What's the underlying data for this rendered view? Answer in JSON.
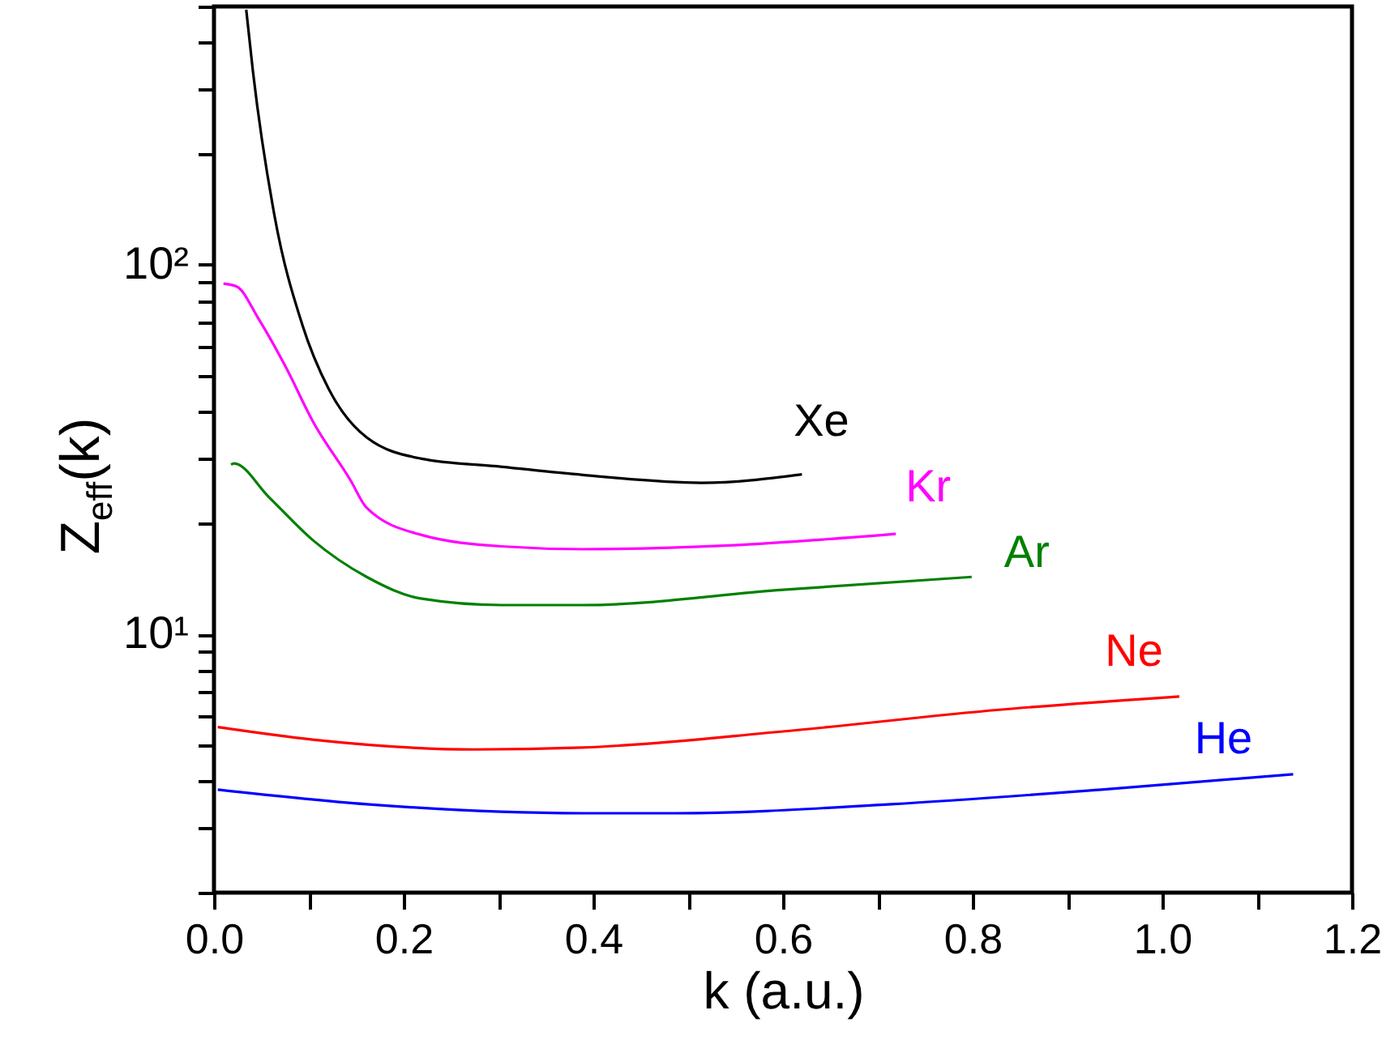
{
  "chart_data": {
    "type": "line",
    "xlabel": "k (a.u.)",
    "ylabel": "Z$_{eff}$(k)",
    "log": "y",
    "grid": false,
    "legend": false,
    "xlim": [
      0,
      1.2
    ],
    "ylim": [
      2,
      500
    ],
    "xticks": [
      {
        "value": 0,
        "label": "0.0"
      },
      {
        "value": 0.1,
        "label": null
      },
      {
        "value": 0.2,
        "label": "0.2"
      },
      {
        "value": 0.3,
        "label": null
      },
      {
        "value": 0.4,
        "label": "0.4"
      },
      {
        "value": 0.5,
        "label": null
      },
      {
        "value": 0.6,
        "label": "0.6"
      },
      {
        "value": 0.7,
        "label": null
      },
      {
        "value": 0.8,
        "label": "0.8"
      },
      {
        "value": 0.9,
        "label": null
      },
      {
        "value": 1.0,
        "label": "1.0"
      },
      {
        "value": 1.1,
        "label": null
      },
      {
        "value": 1.2,
        "label": "1.2"
      }
    ],
    "yticks": [
      {
        "value": 2,
        "label": null
      },
      {
        "value": 3,
        "label": null
      },
      {
        "value": 4,
        "label": null
      },
      {
        "value": 5,
        "label": null
      },
      {
        "value": 6,
        "label": null
      },
      {
        "value": 7,
        "label": null
      },
      {
        "value": 8,
        "label": null
      },
      {
        "value": 9,
        "label": null
      },
      {
        "value": 10,
        "label": "10¹"
      },
      {
        "value": 20,
        "label": null
      },
      {
        "value": 30,
        "label": null
      },
      {
        "value": 40,
        "label": null
      },
      {
        "value": 50,
        "label": null
      },
      {
        "value": 60,
        "label": null
      },
      {
        "value": 70,
        "label": null
      },
      {
        "value": 80,
        "label": null
      },
      {
        "value": 90,
        "label": null
      },
      {
        "value": 100,
        "label": "10²"
      },
      {
        "value": 200,
        "label": null
      },
      {
        "value": 300,
        "label": null
      },
      {
        "value": 400,
        "label": null
      },
      {
        "value": 500,
        "label": null
      }
    ],
    "series": [
      {
        "name": "Xe",
        "color": "#000000",
        "x": [
          0.034,
          0.041,
          0.064,
          0.093,
          0.121,
          0.161,
          0.218,
          0.304,
          0.389,
          0.514,
          0.62
        ],
        "values": [
          490,
          335,
          135,
          69,
          46.1,
          34.1,
          29.9,
          28.4,
          27.0,
          25.7,
          27.1
        ]
      },
      {
        "name": "Kr",
        "color": "#ff00ff",
        "x": [
          0.01,
          0.024,
          0.047,
          0.076,
          0.104,
          0.144,
          0.161,
          0.218,
          0.303,
          0.389,
          0.543,
          0.719
        ],
        "values": [
          88.9,
          87.3,
          71.4,
          52.7,
          37.8,
          26.1,
          22.0,
          18.6,
          17.3,
          17.0,
          17.4,
          18.7
        ]
      },
      {
        "name": "Ar",
        "color": "#008000",
        "x": [
          0.018,
          0.021,
          0.058,
          0.104,
          0.161,
          0.218,
          0.303,
          0.389,
          0.6,
          0.799
        ],
        "values": [
          28.8,
          29.0,
          23.5,
          18.0,
          14.3,
          12.5,
          12.0,
          12.0,
          13.2,
          14.3
        ]
      },
      {
        "name": "Ne",
        "color": "#ff0000",
        "x": [
          0.004,
          0.104,
          0.275,
          0.389,
          0.6,
          0.828,
          1.018
        ],
        "values": [
          5.61,
          5.19,
          4.88,
          4.94,
          5.46,
          6.25,
          6.79
        ]
      },
      {
        "name": "He",
        "color": "#0000ff",
        "x": [
          0.004,
          0.161,
          0.389,
          0.486,
          0.714,
          0.941,
          1.138
        ],
        "values": [
          3.8,
          3.47,
          3.28,
          3.28,
          3.47,
          3.81,
          4.18
        ]
      }
    ]
  }
}
